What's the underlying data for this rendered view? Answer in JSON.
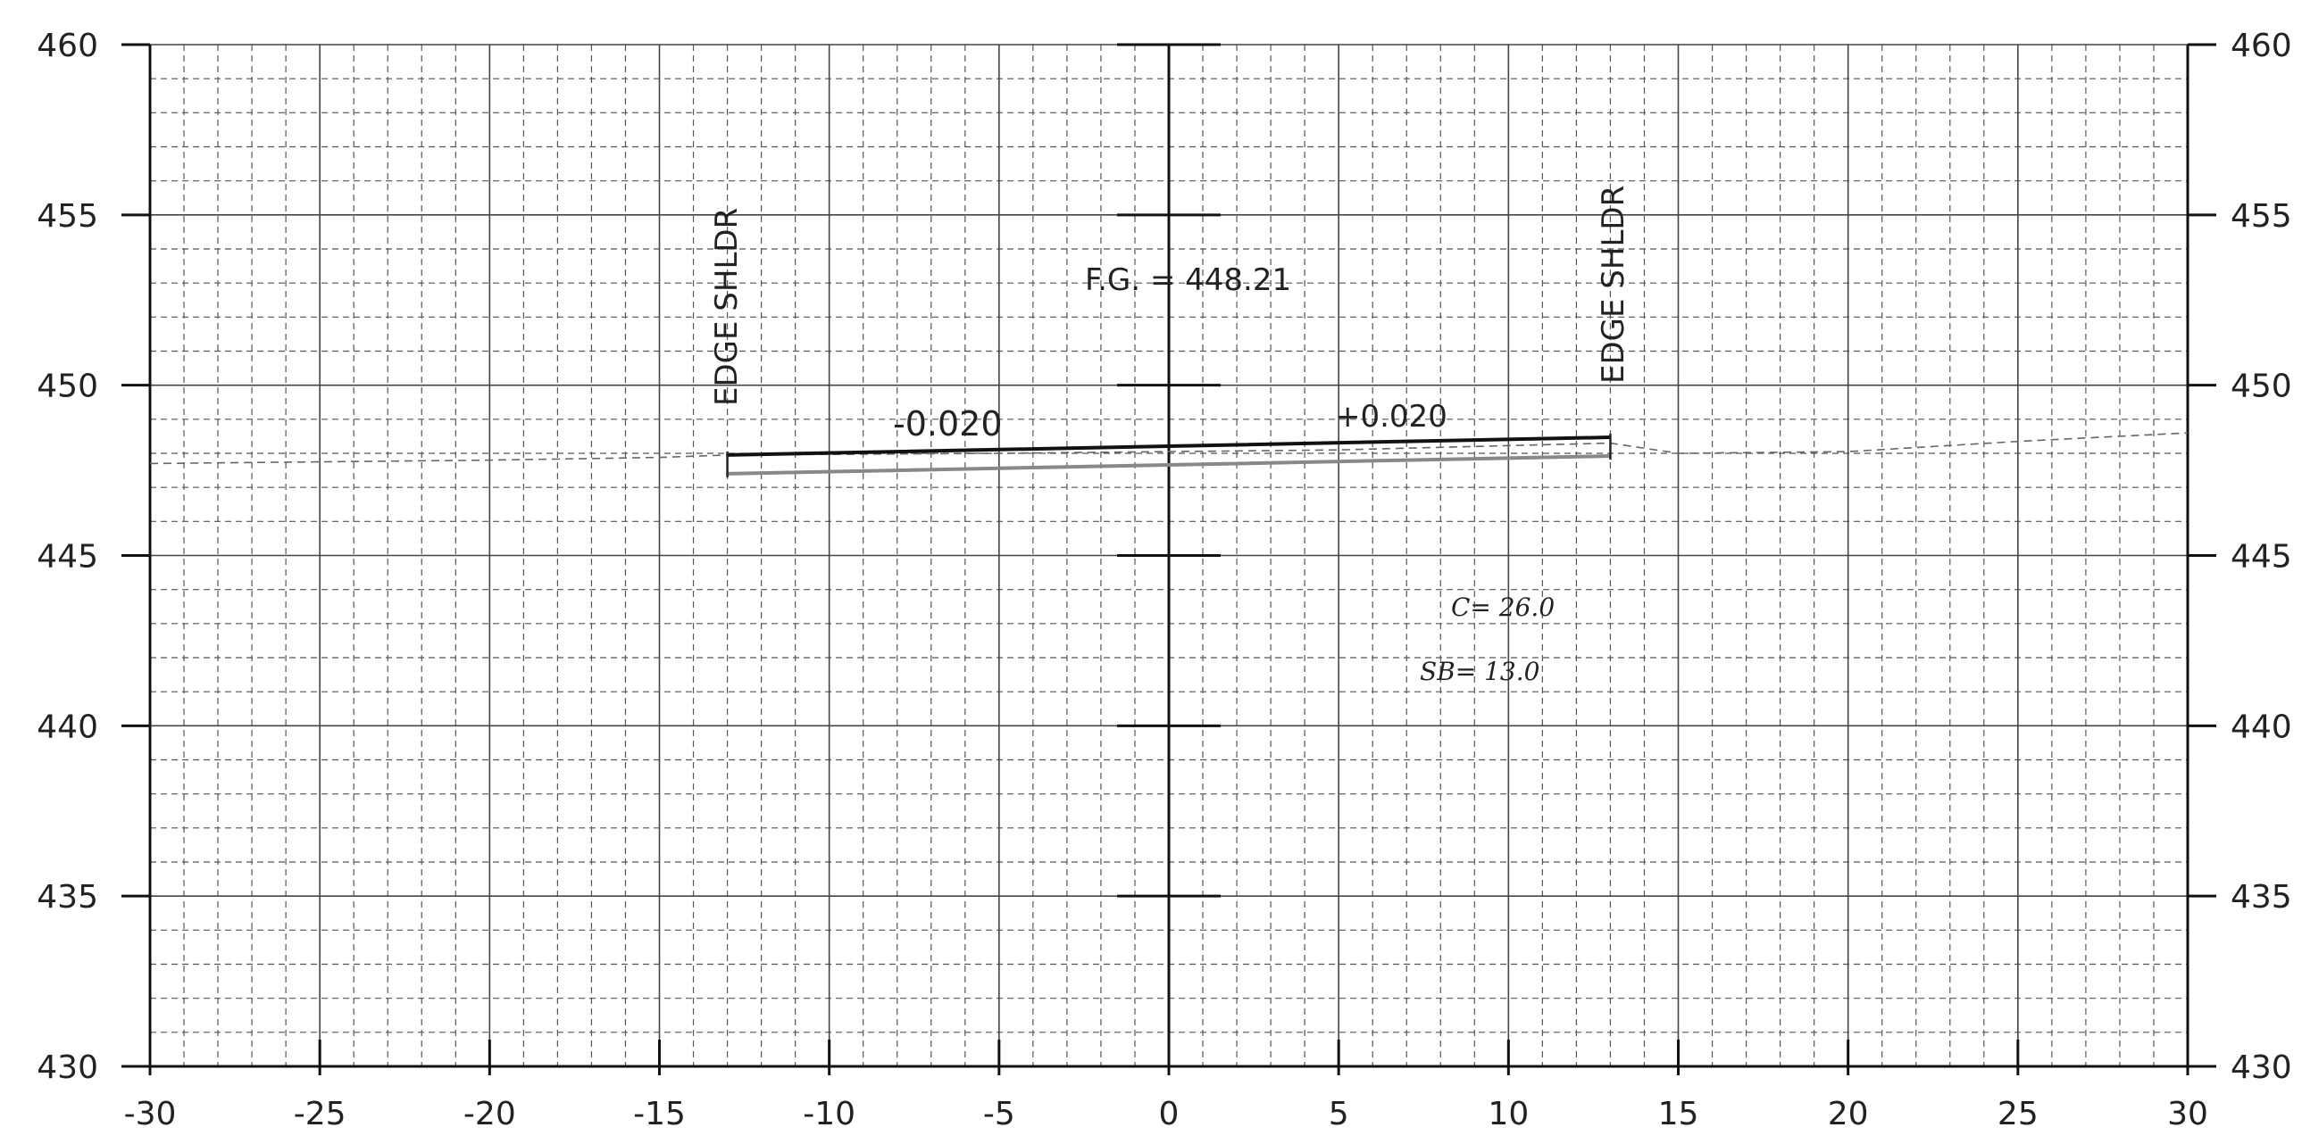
{
  "chart_data": {
    "type": "cross-section",
    "x_ticks": [
      "-30",
      "-25",
      "-20",
      "-15",
      "-10",
      "-5",
      "0",
      "5",
      "10",
      "15",
      "20",
      "25",
      "30"
    ],
    "y_ticks": [
      "460",
      "455",
      "450",
      "445",
      "440",
      "435",
      "430"
    ],
    "xlim": [
      -30,
      30
    ],
    "ylim": [
      430,
      460
    ],
    "grid": true,
    "center_line_x": 0,
    "labels": {
      "left_shoulder": "EDGE SHLDR",
      "right_shoulder": "EDGE SHLDR",
      "finished_grade": "F.G. = 448.21",
      "left_slope": "-0.020",
      "right_slope": "+0.020",
      "note_c": "C= 26.0",
      "note_sb": "SB= 13.0"
    },
    "finished_grade_line": {
      "x": [
        -13,
        0,
        13
      ],
      "y": [
        447.95,
        448.21,
        448.47
      ]
    },
    "subgrade_line": {
      "x": [
        -13,
        0,
        13
      ],
      "y": [
        447.4,
        447.66,
        447.92
      ]
    },
    "existing_ground": {
      "x": [
        -30,
        -25,
        -20,
        -15,
        -13,
        -5,
        0,
        5,
        13,
        15,
        20,
        25,
        30
      ],
      "y": [
        447.7,
        447.75,
        447.8,
        447.88,
        447.95,
        448.0,
        448.05,
        448.1,
        448.3,
        448.0,
        448.05,
        448.35,
        448.6
      ]
    }
  }
}
